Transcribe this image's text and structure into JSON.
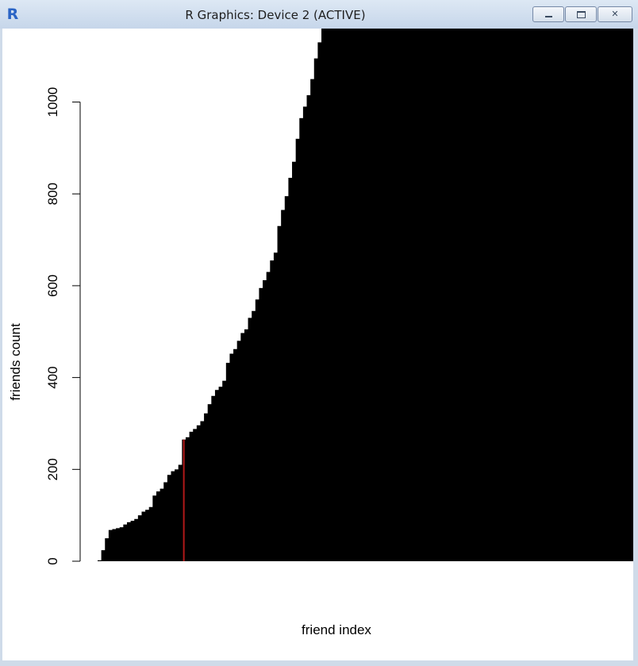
{
  "window": {
    "title": "R Graphics: Device 2 (ACTIVE)",
    "icon": "r-logo-icon",
    "icon_text": "R",
    "controls": [
      "minimize-icon",
      "maximize-icon",
      "close-icon"
    ]
  },
  "chart_data": {
    "type": "bar",
    "title": "",
    "xlabel": "friend index",
    "ylabel": "friends count",
    "ylim": [
      0,
      1160
    ],
    "yticks": [
      0,
      200,
      400,
      600,
      800,
      1000
    ],
    "ytick_labels": [
      "0",
      "200",
      "400",
      "600",
      "800",
      "1000"
    ],
    "axes": {
      "x_axis_drawn": false,
      "y_axis_drawn": true
    },
    "grid": false,
    "bar_color": "#000000",
    "highlight_color": "#b01818",
    "highlight_index": 23,
    "values": [
      2,
      24,
      50,
      68,
      70,
      72,
      74,
      80,
      85,
      88,
      92,
      100,
      108,
      112,
      118,
      143,
      152,
      158,
      172,
      188,
      196,
      200,
      210,
      265,
      270,
      282,
      288,
      296,
      305,
      322,
      342,
      360,
      373,
      380,
      393,
      432,
      452,
      462,
      480,
      497,
      505,
      530,
      545,
      570,
      595,
      612,
      630,
      655,
      672,
      730,
      765,
      795,
      835,
      870,
      920,
      965,
      990,
      1015,
      1050,
      1095,
      1130,
      1160,
      1160,
      1160,
      1160,
      1160,
      1160,
      1160,
      1160,
      1160,
      1160,
      1160,
      1160,
      1160,
      1160,
      1160,
      1160,
      1160,
      1160,
      1160,
      1160,
      1160,
      1160,
      1160,
      1160,
      1160,
      1160,
      1160,
      1160,
      1160,
      1160,
      1160,
      1160,
      1160,
      1160,
      1160,
      1160,
      1160,
      1160,
      1160,
      1160,
      1160,
      1160,
      1160,
      1160,
      1160,
      1160,
      1160,
      1160,
      1160,
      1160,
      1160,
      1160,
      1160,
      1160,
      1160,
      1160,
      1160,
      1160,
      1160,
      1160,
      1160,
      1160,
      1160,
      1160,
      1160,
      1160,
      1160,
      1160,
      1160,
      1160,
      1160,
      1160,
      1160,
      1160,
      1160,
      1160,
      1160,
      1160,
      1160,
      1160,
      1160,
      1160,
      1160,
      1160,
      1160
    ]
  }
}
